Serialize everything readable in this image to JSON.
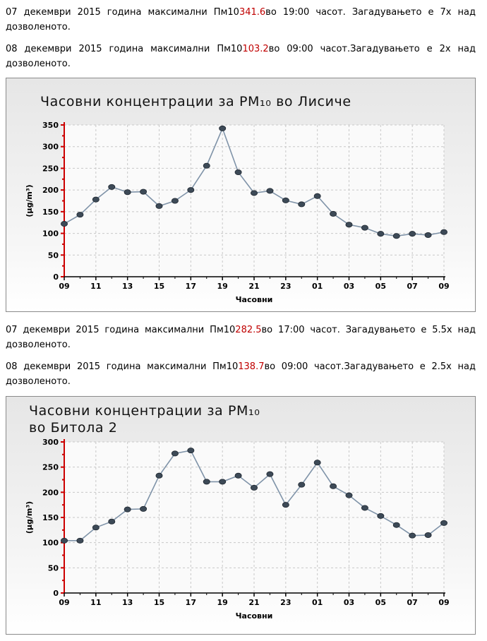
{
  "paragraphs": [
    {
      "pre": "07 декември 2015 година максимални Пм10",
      "value": "341.6",
      "post": "во 19:00 часот. Загадувањето е 7x над дозволеното."
    },
    {
      "pre": "08 декември 2015 година максимални Пм10",
      "value": "103.2",
      "post": "во 09:00 часот.Загадувањето е 2x над дозволеното."
    },
    {
      "pre": "07 декември 2015 година максимални Пм10",
      "value": "282.5",
      "post": "во 17:00 часот. Загадувањето е 5.5x над дозволеното."
    },
    {
      "pre": "08 декември 2015 година максимални Пм10",
      "value": "138.7",
      "post": "во 09:00 часот.Загадувањето е 2.5x над дозволеното."
    }
  ],
  "chart_data": [
    {
      "type": "line",
      "title": "Часовни концентрации за PM₁₀ во Лисиче",
      "xlabel": "Часовни",
      "ylabel": "(µg/m³)",
      "ylim": [
        0,
        350
      ],
      "yticks": [
        0,
        50,
        100,
        150,
        200,
        250,
        300,
        350
      ],
      "xtick_labels": [
        "09",
        "11",
        "13",
        "15",
        "17",
        "19",
        "21",
        "23",
        "01",
        "03",
        "05",
        "07",
        "09"
      ],
      "x": [
        "09",
        "10",
        "11",
        "12",
        "13",
        "14",
        "15",
        "16",
        "17",
        "18",
        "19",
        "20",
        "21",
        "22",
        "23",
        "00",
        "01",
        "02",
        "03",
        "04",
        "05",
        "06",
        "07",
        "08",
        "09"
      ],
      "values": [
        122,
        143,
        178,
        207,
        195,
        196,
        163,
        175,
        200,
        256,
        342,
        241,
        193,
        198,
        176,
        167,
        186,
        145,
        120,
        113,
        99,
        94,
        99,
        96,
        103
      ],
      "grid": true,
      "colors": {
        "line": "#7f93a8",
        "marker": "#3d4a57",
        "axis": "#cc0000"
      }
    },
    {
      "type": "line",
      "title": "Часовни концентрации за PM₁₀ во Битола 2",
      "xlabel": "Часовни",
      "ylabel": "(µg/m³)",
      "ylim": [
        0,
        300
      ],
      "yticks": [
        0,
        50,
        100,
        150,
        200,
        250,
        300
      ],
      "xtick_labels": [
        "09",
        "11",
        "13",
        "15",
        "17",
        "19",
        "21",
        "23",
        "01",
        "03",
        "05",
        "07",
        "09"
      ],
      "x": [
        "09",
        "10",
        "11",
        "12",
        "13",
        "14",
        "15",
        "16",
        "17",
        "18",
        "19",
        "20",
        "21",
        "22",
        "23",
        "00",
        "01",
        "02",
        "03",
        "04",
        "05",
        "06",
        "07",
        "08",
        "09"
      ],
      "values": [
        104,
        104,
        130,
        142,
        166,
        167,
        233,
        277,
        283,
        221,
        221,
        233,
        209,
        236,
        175,
        215,
        259,
        212,
        194,
        169,
        153,
        135,
        114,
        115,
        139
      ],
      "grid": true,
      "colors": {
        "line": "#7f93a8",
        "marker": "#3d4a57",
        "axis": "#cc0000"
      }
    }
  ]
}
